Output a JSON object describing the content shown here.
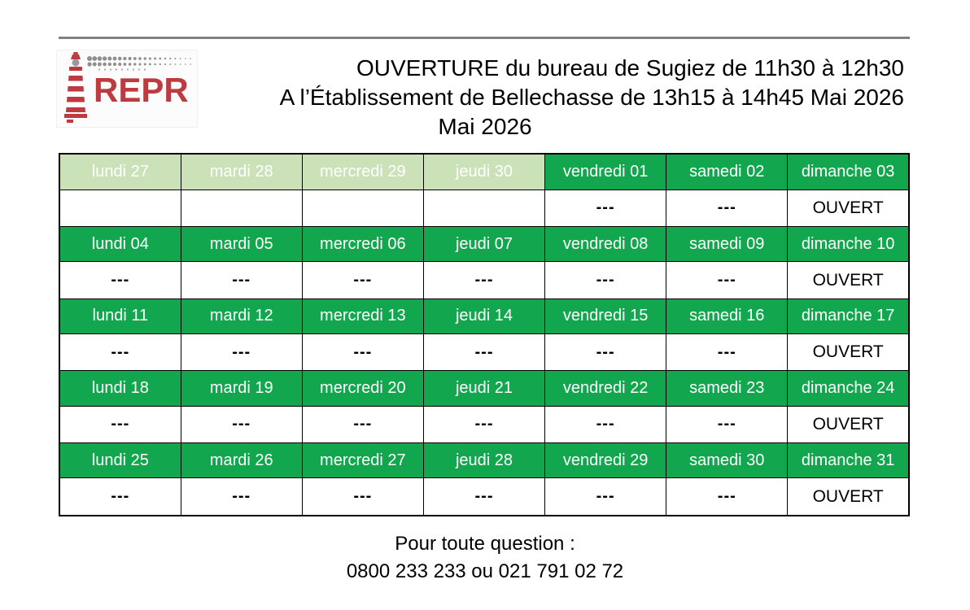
{
  "colors": {
    "green": "#12A74E",
    "light_green": "#CBE2B8",
    "logo_red": "#BE3A41",
    "divider_gray": "#808080",
    "border_black": "#000000"
  },
  "header": {
    "logo_text": "REPR",
    "title_line1": "OUVERTURE du bureau de Sugiez de 11h30 à 12h30",
    "title_line2": "A l’Établissement de Bellechasse de 13h15 à 14h45 Mai 2026",
    "title_line3": "Mai 2026"
  },
  "calendar": {
    "month": "Mai 2026",
    "open_label": "OUVERT",
    "closed_label": "---",
    "weeks": [
      {
        "days": [
          "lundi 27",
          "mardi 28",
          "mercredi 29",
          "jeudi 30",
          "vendredi 01",
          "samedi 02",
          "dimanche 03"
        ],
        "prev_month_count": 4,
        "status": [
          "",
          "",
          "",
          "",
          "---",
          "---",
          "OUVERT"
        ]
      },
      {
        "days": [
          "lundi 04",
          "mardi 05",
          "mercredi 06",
          "jeudi 07",
          "vendredi 08",
          "samedi 09",
          "dimanche 10"
        ],
        "prev_month_count": 0,
        "status": [
          "---",
          "---",
          "---",
          "---",
          "---",
          "---",
          "OUVERT"
        ]
      },
      {
        "days": [
          "lundi 11",
          "mardi 12",
          "mercredi 13",
          "jeudi 14",
          "vendredi 15",
          "samedi 16",
          "dimanche 17"
        ],
        "prev_month_count": 0,
        "status": [
          "---",
          "---",
          "---",
          "---",
          "---",
          "---",
          "OUVERT"
        ]
      },
      {
        "days": [
          "lundi 18",
          "mardi 19",
          "mercredi 20",
          "jeudi 21",
          "vendredi 22",
          "samedi 23",
          "dimanche 24"
        ],
        "prev_month_count": 0,
        "status": [
          "---",
          "---",
          "---",
          "---",
          "---",
          "---",
          "OUVERT"
        ]
      },
      {
        "days": [
          "lundi 25",
          "mardi 26",
          "mercredi 27",
          "jeudi 28",
          "vendredi 29",
          "samedi 30",
          "dimanche 31"
        ],
        "prev_month_count": 0,
        "status": [
          "---",
          "---",
          "---",
          "---",
          "---",
          "---",
          "OUVERT"
        ]
      }
    ]
  },
  "footer": {
    "line1": "Pour toute question :",
    "line2": "0800 233 233 ou 021 791 02 72"
  }
}
